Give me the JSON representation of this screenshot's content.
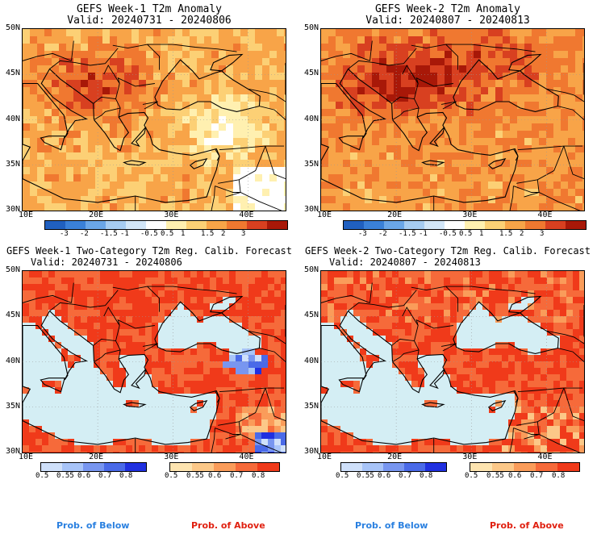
{
  "panels": [
    {
      "title1": "GEFS Week-1 T2m Anomaly",
      "title2": "Valid: 20240731 - 20240806",
      "kind": "anom",
      "seed": 11
    },
    {
      "title1": "GEFS Week-2 T2m Anomaly",
      "title2": "Valid: 20240807 - 20240813",
      "kind": "anom",
      "seed": 27
    },
    {
      "title1": "GEFS Week-1 Two-Category T2m Reg. Calib. Forecast",
      "title2": "Valid: 20240731 - 20240806",
      "kind": "prob",
      "seed": 5
    },
    {
      "title1": "GEFS Week-2 Two-Category T2m Reg. Calib. Forecast",
      "title2": "Valid: 20240807 - 20240813",
      "kind": "prob",
      "seed": 42
    }
  ],
  "lat_labels": [
    "50N",
    "45N",
    "40N",
    "35N",
    "30N"
  ],
  "lon_labels": [
    "10E",
    "20E",
    "30E",
    "40E"
  ],
  "anom_colorbar": {
    "labels": [
      "-3",
      "-2",
      "-1.5",
      "-1",
      "-0.5",
      "0.5",
      "1",
      "1.5",
      "2",
      "3"
    ],
    "colors": [
      "#2060c0",
      "#3a80d8",
      "#6aa6e8",
      "#a6ccf2",
      "#d2e6f8",
      "#ffffff",
      "#fff0b0",
      "#fcd075",
      "#f8a448",
      "#f07830",
      "#d84020",
      "#a81808"
    ]
  },
  "below_colorbar": {
    "labels": [
      "0.5",
      "0.55",
      "0.6",
      "0.7",
      "0.8"
    ],
    "colors": [
      "#cfe0fa",
      "#a8c4f8",
      "#7896f0",
      "#4a6ae8",
      "#2030e0"
    ]
  },
  "above_colorbar": {
    "labels": [
      "0.5",
      "0.55",
      "0.6",
      "0.7",
      "0.8"
    ],
    "colors": [
      "#fde4b0",
      "#fcc888",
      "#fa9c5a",
      "#f66a3a",
      "#f03a1a"
    ]
  },
  "footer": {
    "below": "Prob. of Below",
    "above": "Prob. of Above"
  }
}
